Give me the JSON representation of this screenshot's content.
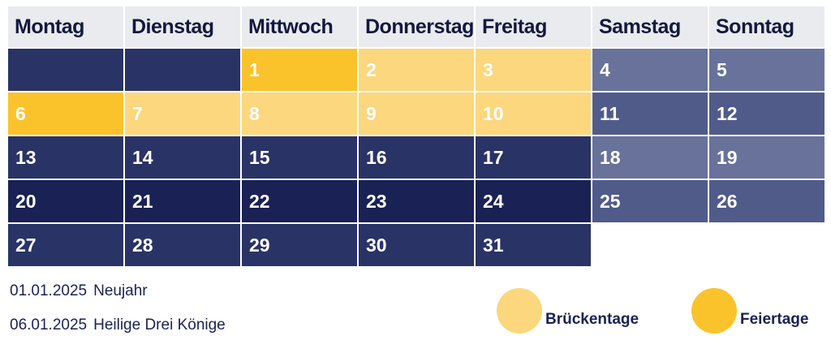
{
  "weekdays": [
    "Montag",
    "Dienstag",
    "Mittwoch",
    "Donnerstag",
    "Freitag",
    "Samstag",
    "Sonntag"
  ],
  "rows": [
    [
      "",
      "",
      "1",
      "2",
      "3",
      "4",
      "5"
    ],
    [
      "6",
      "7",
      "8",
      "9",
      "10",
      "11",
      "12"
    ],
    [
      "13",
      "14",
      "15",
      "16",
      "17",
      "18",
      "19"
    ],
    [
      "20",
      "21",
      "22",
      "23",
      "24",
      "25",
      "26"
    ],
    [
      "27",
      "28",
      "29",
      "30",
      "31"
    ]
  ],
  "holidays": [
    {
      "date": "01.01.2025",
      "name": "Neujahr"
    },
    {
      "date": "06.01.2025",
      "name": "Heilige Drei Könige"
    }
  ],
  "legend": {
    "bridge_label": "Brückentage",
    "holiday_label": "Feiertage"
  },
  "colors": {
    "header_bg": "#e9ebee",
    "navy": "#293366",
    "dark_navy": "#1a2154",
    "weekend_light": "#68729a",
    "weekend_dark": "#515b8a",
    "holiday": "#fbc32b",
    "bridge_day": "#fcd77e"
  }
}
